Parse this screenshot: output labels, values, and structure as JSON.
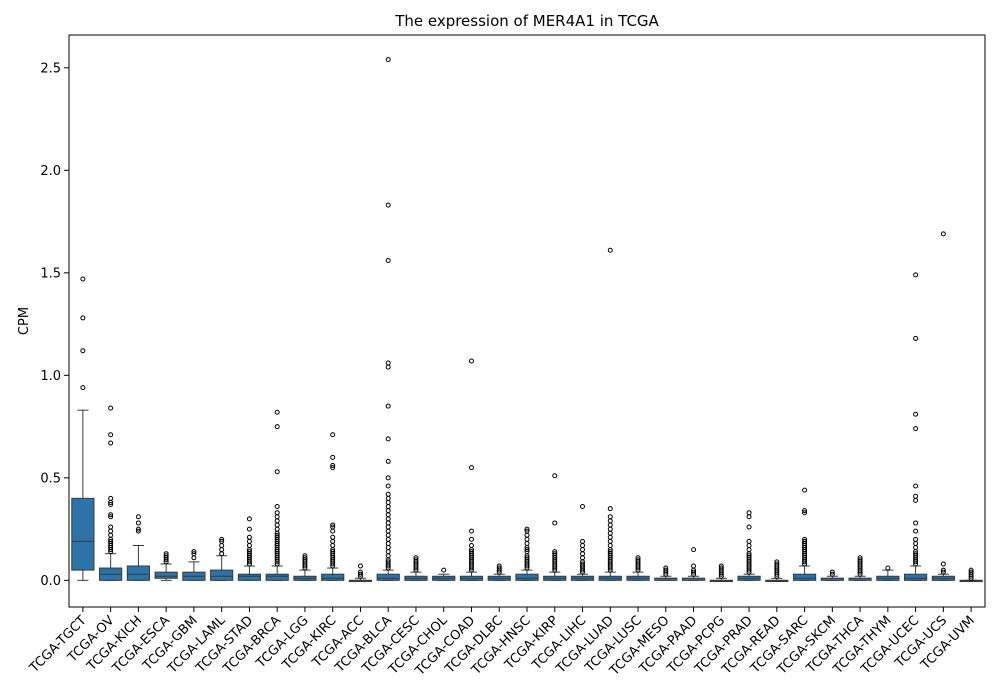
{
  "chart_data": {
    "type": "box",
    "title": "The expression of MER4A1 in TCGA",
    "xlabel": "",
    "ylabel": "CPM",
    "ylim": [
      -0.13,
      2.66
    ],
    "yticks": [
      "0.0",
      "0.5",
      "1.0",
      "1.5",
      "2.0",
      "2.5"
    ],
    "grid": false,
    "legend": "none",
    "box_color": "#2b73a8",
    "categories": [
      "TCGA-TGCT",
      "TCGA-OV",
      "TCGA-KICH",
      "TCGA-ESCA",
      "TCGA-GBM",
      "TCGA-LAML",
      "TCGA-STAD",
      "TCGA-BRCA",
      "TCGA-LGG",
      "TCGA-KIRC",
      "TCGA-ACC",
      "TCGA-BLCA",
      "TCGA-CESC",
      "TCGA-CHOL",
      "TCGA-COAD",
      "TCGA-DLBC",
      "TCGA-HNSC",
      "TCGA-KIRP",
      "TCGA-LIHC",
      "TCGA-LUAD",
      "TCGA-LUSC",
      "TCGA-MESO",
      "TCGA-PAAD",
      "TCGA-PCPG",
      "TCGA-PRAD",
      "TCGA-READ",
      "TCGA-SARC",
      "TCGA-SKCM",
      "TCGA-THCA",
      "TCGA-THYM",
      "TCGA-UCEC",
      "TCGA-UCS",
      "TCGA-UVM"
    ],
    "boxes": [
      {
        "min": 0.0,
        "q1": 0.05,
        "median": 0.19,
        "q3": 0.4,
        "max": 0.83,
        "outliers": [
          0.94,
          1.12,
          1.28,
          1.47
        ]
      },
      {
        "min": 0.0,
        "q1": 0.0,
        "median": 0.03,
        "q3": 0.06,
        "max": 0.13,
        "outliers": [
          0.14,
          0.15,
          0.16,
          0.17,
          0.18,
          0.19,
          0.2,
          0.22,
          0.24,
          0.26,
          0.31,
          0.32,
          0.37,
          0.38,
          0.4,
          0.67,
          0.71,
          0.84
        ]
      },
      {
        "min": 0.0,
        "q1": 0.0,
        "median": 0.03,
        "q3": 0.07,
        "max": 0.17,
        "outliers": [
          0.24,
          0.25,
          0.28,
          0.31
        ]
      },
      {
        "min": 0.0,
        "q1": 0.01,
        "median": 0.02,
        "q3": 0.04,
        "max": 0.08,
        "outliers": [
          0.09,
          0.1,
          0.11,
          0.12,
          0.13
        ]
      },
      {
        "min": 0.0,
        "q1": 0.0,
        "median": 0.02,
        "q3": 0.04,
        "max": 0.09,
        "outliers": [
          0.11,
          0.13,
          0.14
        ]
      },
      {
        "min": 0.0,
        "q1": 0.0,
        "median": 0.02,
        "q3": 0.05,
        "max": 0.12,
        "outliers": [
          0.13,
          0.15,
          0.17,
          0.19,
          0.2
        ]
      },
      {
        "min": 0.0,
        "q1": 0.0,
        "median": 0.02,
        "q3": 0.03,
        "max": 0.07,
        "outliers": [
          0.08,
          0.09,
          0.1,
          0.11,
          0.12,
          0.13,
          0.14,
          0.15,
          0.17,
          0.19,
          0.21,
          0.25,
          0.3
        ]
      },
      {
        "min": 0.0,
        "q1": 0.0,
        "median": 0.02,
        "q3": 0.03,
        "max": 0.07,
        "outliers": [
          0.08,
          0.09,
          0.1,
          0.11,
          0.12,
          0.13,
          0.14,
          0.15,
          0.16,
          0.17,
          0.18,
          0.19,
          0.2,
          0.21,
          0.22,
          0.23,
          0.25,
          0.27,
          0.29,
          0.31,
          0.33,
          0.36,
          0.53,
          0.75,
          0.82
        ]
      },
      {
        "min": 0.0,
        "q1": 0.0,
        "median": 0.01,
        "q3": 0.02,
        "max": 0.05,
        "outliers": [
          0.06,
          0.07,
          0.08,
          0.09,
          0.1,
          0.11,
          0.12
        ]
      },
      {
        "min": 0.0,
        "q1": 0.0,
        "median": 0.01,
        "q3": 0.03,
        "max": 0.06,
        "outliers": [
          0.07,
          0.08,
          0.09,
          0.1,
          0.11,
          0.12,
          0.13,
          0.14,
          0.15,
          0.17,
          0.19,
          0.21,
          0.24,
          0.26,
          0.27,
          0.55,
          0.56,
          0.6,
          0.71
        ]
      },
      {
        "min": 0.0,
        "q1": 0.0,
        "median": 0.0,
        "q3": 0.0,
        "max": 0.01,
        "outliers": [
          0.02,
          0.03,
          0.04,
          0.07
        ]
      },
      {
        "min": 0.0,
        "q1": 0.0,
        "median": 0.01,
        "q3": 0.03,
        "max": 0.05,
        "outliers": [
          0.06,
          0.07,
          0.08,
          0.09,
          0.1,
          0.12,
          0.14,
          0.16,
          0.18,
          0.2,
          0.22,
          0.24,
          0.26,
          0.28,
          0.3,
          0.32,
          0.34,
          0.36,
          0.38,
          0.4,
          0.42,
          0.46,
          0.5,
          0.58,
          0.69,
          0.85,
          1.04,
          1.06,
          1.56,
          1.83,
          2.54
        ]
      },
      {
        "min": 0.0,
        "q1": 0.0,
        "median": 0.01,
        "q3": 0.02,
        "max": 0.04,
        "outliers": [
          0.05,
          0.06,
          0.07,
          0.08,
          0.09,
          0.1,
          0.11
        ]
      },
      {
        "min": 0.0,
        "q1": 0.0,
        "median": 0.01,
        "q3": 0.02,
        "max": 0.03,
        "outliers": [
          0.05
        ]
      },
      {
        "min": 0.0,
        "q1": 0.0,
        "median": 0.01,
        "q3": 0.02,
        "max": 0.04,
        "outliers": [
          0.05,
          0.06,
          0.07,
          0.08,
          0.09,
          0.1,
          0.11,
          0.12,
          0.13,
          0.14,
          0.15,
          0.17,
          0.2,
          0.24,
          0.55,
          1.07
        ]
      },
      {
        "min": 0.0,
        "q1": 0.0,
        "median": 0.01,
        "q3": 0.02,
        "max": 0.03,
        "outliers": [
          0.04,
          0.05,
          0.06,
          0.07
        ]
      },
      {
        "min": 0.0,
        "q1": 0.0,
        "median": 0.01,
        "q3": 0.03,
        "max": 0.05,
        "outliers": [
          0.06,
          0.07,
          0.08,
          0.09,
          0.1,
          0.11,
          0.12,
          0.14,
          0.15,
          0.16,
          0.18,
          0.2,
          0.22,
          0.24,
          0.25
        ]
      },
      {
        "min": 0.0,
        "q1": 0.0,
        "median": 0.01,
        "q3": 0.02,
        "max": 0.04,
        "outliers": [
          0.05,
          0.06,
          0.07,
          0.08,
          0.09,
          0.1,
          0.11,
          0.12,
          0.13,
          0.14,
          0.28,
          0.51
        ]
      },
      {
        "min": 0.0,
        "q1": 0.0,
        "median": 0.01,
        "q3": 0.02,
        "max": 0.03,
        "outliers": [
          0.04,
          0.05,
          0.06,
          0.07,
          0.08,
          0.09,
          0.11,
          0.13,
          0.15,
          0.17,
          0.19,
          0.36
        ]
      },
      {
        "min": 0.0,
        "q1": 0.0,
        "median": 0.01,
        "q3": 0.02,
        "max": 0.04,
        "outliers": [
          0.05,
          0.06,
          0.07,
          0.08,
          0.09,
          0.1,
          0.11,
          0.12,
          0.13,
          0.14,
          0.15,
          0.17,
          0.19,
          0.21,
          0.23,
          0.25,
          0.27,
          0.29,
          0.31,
          0.35,
          1.61
        ]
      },
      {
        "min": 0.0,
        "q1": 0.0,
        "median": 0.01,
        "q3": 0.02,
        "max": 0.04,
        "outliers": [
          0.05,
          0.06,
          0.07,
          0.08,
          0.09,
          0.1,
          0.11
        ]
      },
      {
        "min": 0.0,
        "q1": 0.0,
        "median": 0.01,
        "q3": 0.01,
        "max": 0.02,
        "outliers": [
          0.03,
          0.04,
          0.05,
          0.06
        ]
      },
      {
        "min": 0.0,
        "q1": 0.0,
        "median": 0.01,
        "q3": 0.01,
        "max": 0.02,
        "outliers": [
          0.03,
          0.04,
          0.05,
          0.07,
          0.15
        ]
      },
      {
        "min": 0.0,
        "q1": 0.0,
        "median": 0.0,
        "q3": 0.0,
        "max": 0.01,
        "outliers": [
          0.02,
          0.03,
          0.04,
          0.05,
          0.06,
          0.07
        ]
      },
      {
        "min": 0.0,
        "q1": 0.0,
        "median": 0.01,
        "q3": 0.02,
        "max": 0.03,
        "outliers": [
          0.04,
          0.05,
          0.06,
          0.07,
          0.08,
          0.09,
          0.1,
          0.11,
          0.12,
          0.13,
          0.15,
          0.17,
          0.19,
          0.26,
          0.31,
          0.33
        ]
      },
      {
        "min": 0.0,
        "q1": 0.0,
        "median": 0.0,
        "q3": 0.0,
        "max": 0.01,
        "outliers": [
          0.02,
          0.03,
          0.04,
          0.05,
          0.06,
          0.07,
          0.08,
          0.09
        ]
      },
      {
        "min": 0.0,
        "q1": 0.0,
        "median": 0.01,
        "q3": 0.03,
        "max": 0.07,
        "outliers": [
          0.08,
          0.09,
          0.1,
          0.11,
          0.12,
          0.13,
          0.14,
          0.15,
          0.16,
          0.17,
          0.18,
          0.19,
          0.2,
          0.33,
          0.34,
          0.44
        ]
      },
      {
        "min": 0.0,
        "q1": 0.0,
        "median": 0.01,
        "q3": 0.01,
        "max": 0.02,
        "outliers": [
          0.03,
          0.04
        ]
      },
      {
        "min": 0.0,
        "q1": 0.0,
        "median": 0.01,
        "q3": 0.01,
        "max": 0.02,
        "outliers": [
          0.03,
          0.04,
          0.05,
          0.06,
          0.07,
          0.08,
          0.09,
          0.1,
          0.11
        ]
      },
      {
        "min": 0.0,
        "q1": 0.0,
        "median": 0.01,
        "q3": 0.02,
        "max": 0.05,
        "outliers": [
          0.06
        ]
      },
      {
        "min": 0.0,
        "q1": 0.0,
        "median": 0.01,
        "q3": 0.03,
        "max": 0.07,
        "outliers": [
          0.08,
          0.09,
          0.1,
          0.11,
          0.12,
          0.13,
          0.14,
          0.16,
          0.18,
          0.2,
          0.24,
          0.28,
          0.39,
          0.41,
          0.46,
          0.74,
          0.81,
          1.18,
          1.49
        ]
      },
      {
        "min": 0.0,
        "q1": 0.0,
        "median": 0.01,
        "q3": 0.02,
        "max": 0.03,
        "outliers": [
          0.04,
          0.05,
          0.08,
          1.69
        ]
      },
      {
        "min": 0.0,
        "q1": 0.0,
        "median": 0.0,
        "q3": 0.0,
        "max": 0.0,
        "outliers": [
          0.01,
          0.02,
          0.03,
          0.04,
          0.05
        ]
      }
    ]
  }
}
